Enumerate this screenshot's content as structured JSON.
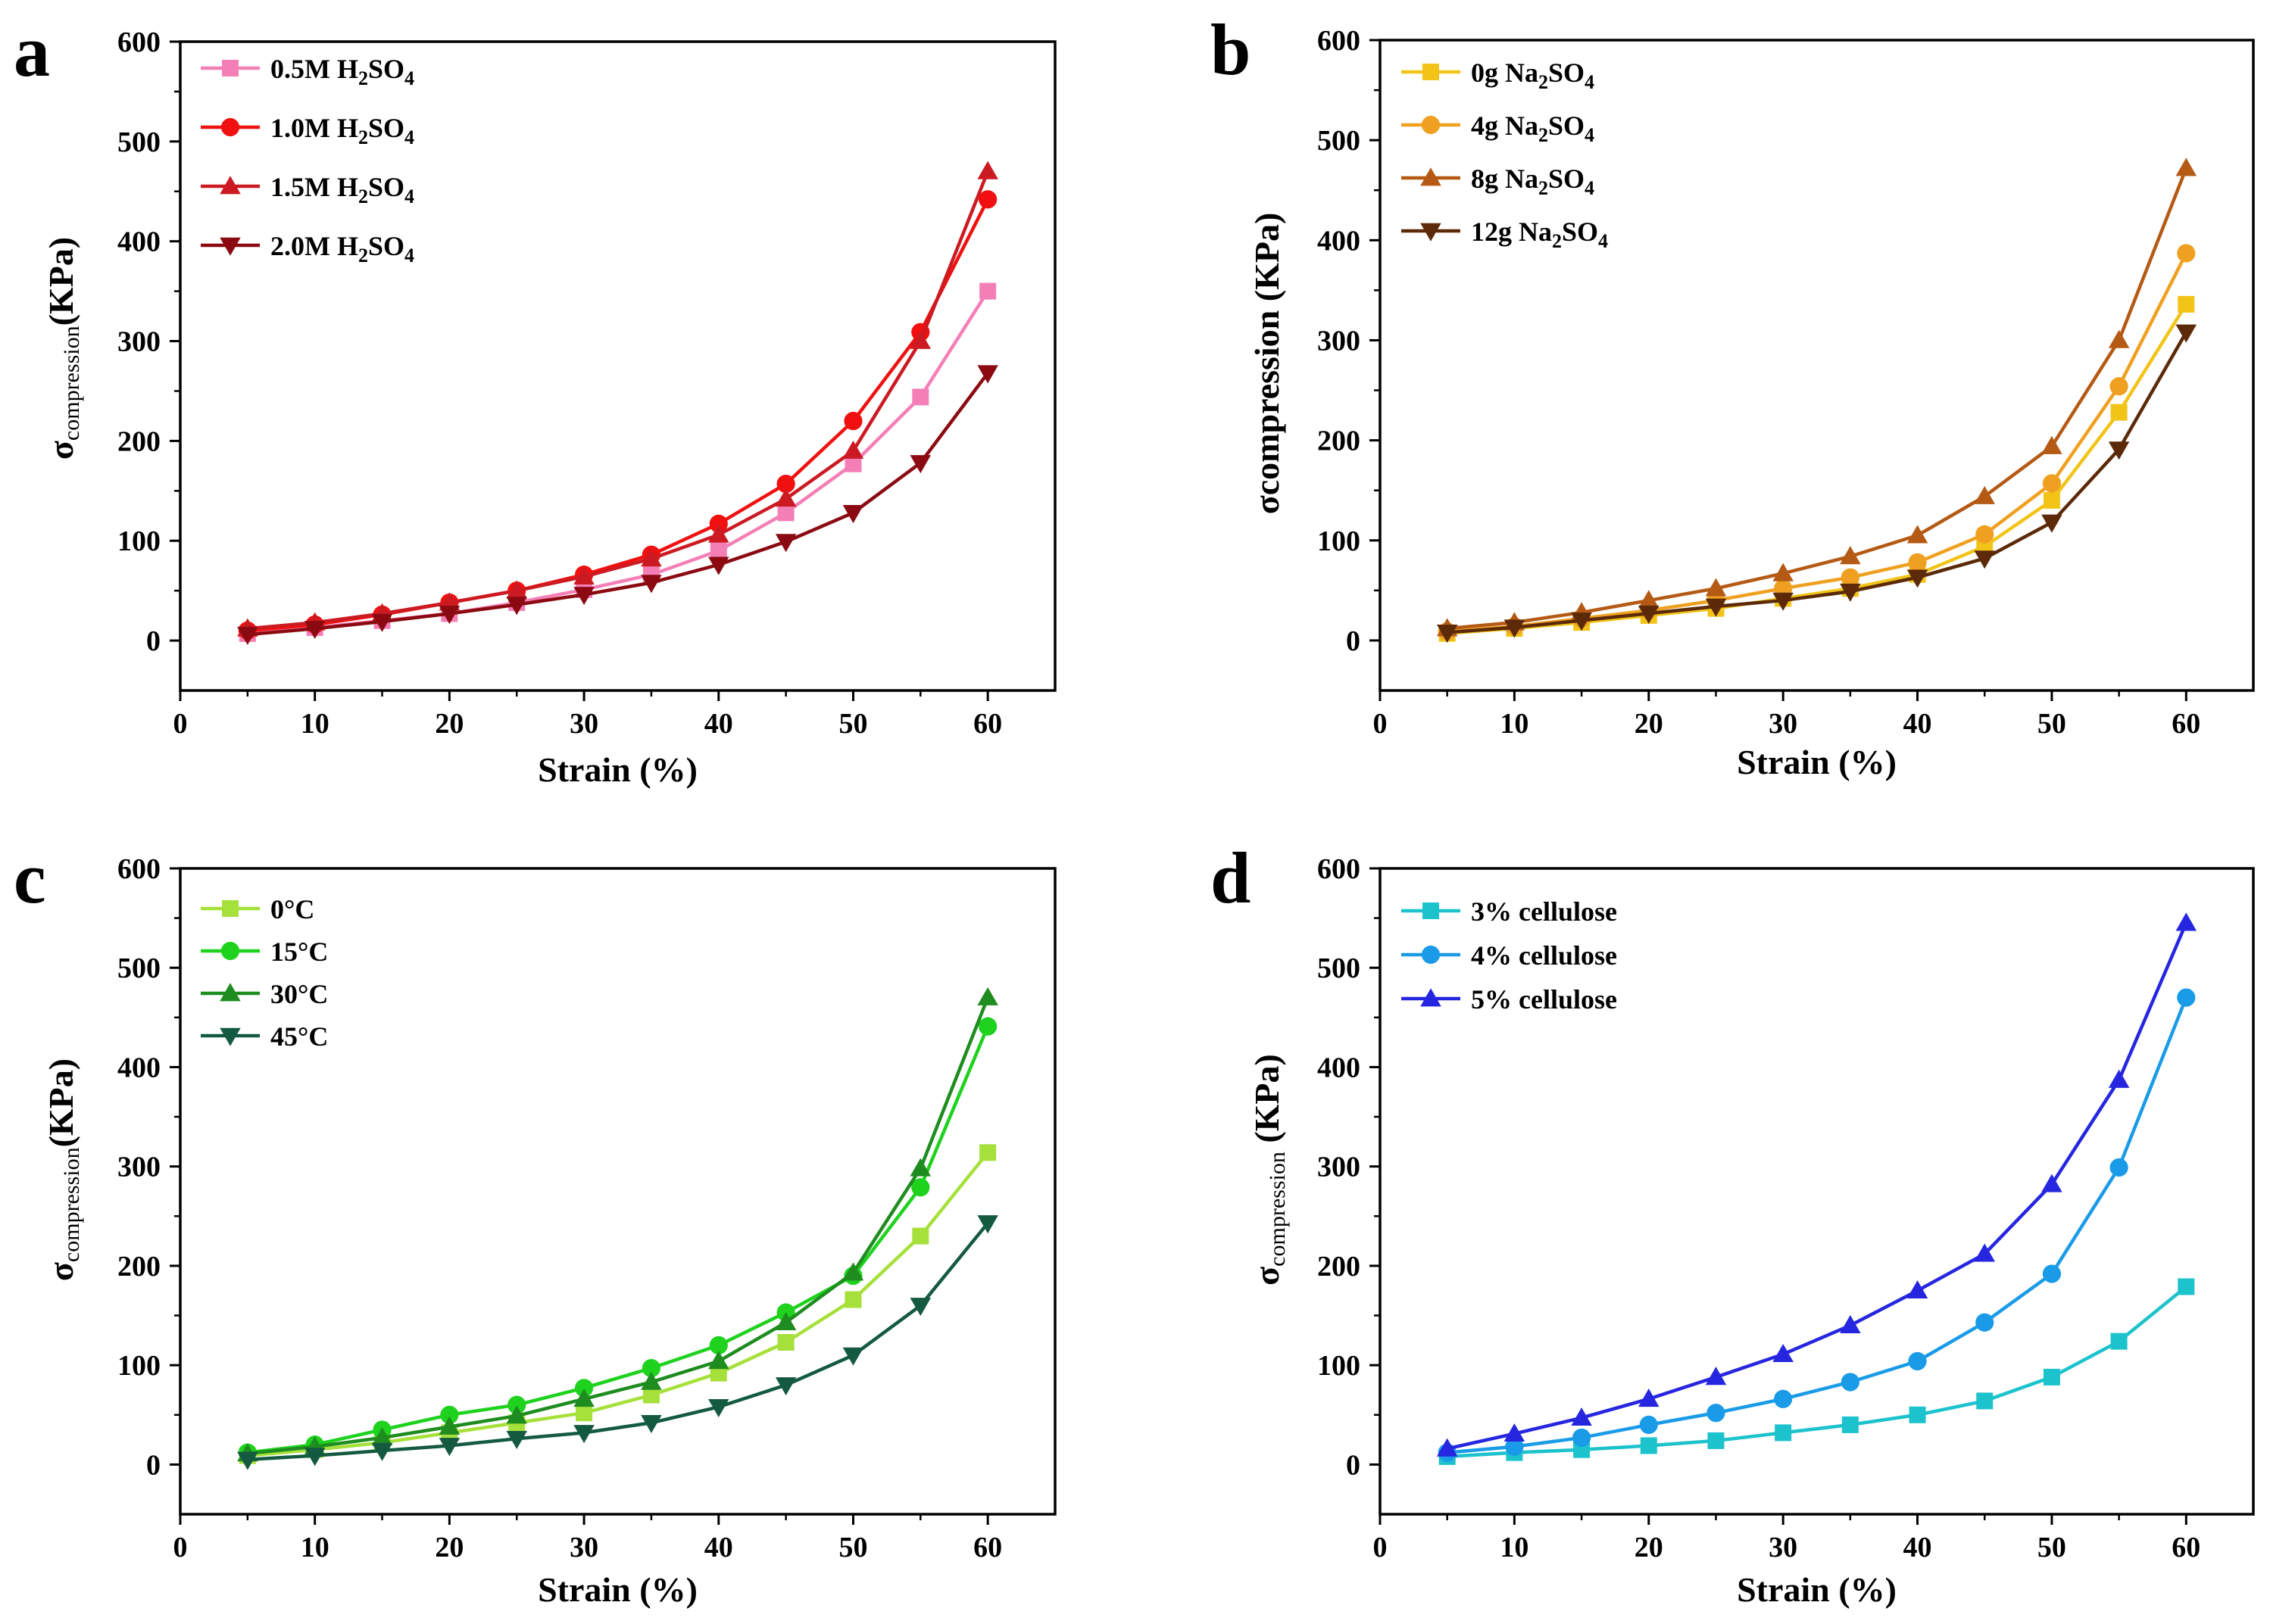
{
  "chart_data": [
    {
      "panel": "a",
      "type": "line",
      "xlabel": "Strain (%)",
      "ylabel_main": "σ",
      "ylabel_sub": "compression",
      "ylabel_unit": "(KPa)",
      "xlim": [
        0,
        65
      ],
      "ylim": [
        -50,
        600
      ],
      "xticks": [
        0,
        10,
        20,
        30,
        40,
        50,
        60
      ],
      "yticks": [
        0,
        100,
        200,
        300,
        400,
        500,
        600
      ],
      "x": [
        5,
        10,
        15,
        20,
        25,
        30,
        35,
        40,
        45,
        50,
        55,
        60
      ],
      "series": [
        {
          "name": "0.5M H2SO4",
          "label_parts": [
            [
              "0.5M H",
              ""
            ],
            [
              "2",
              "sub"
            ],
            [
              "SO",
              ""
            ],
            [
              "4",
              "sub"
            ]
          ],
          "color": "#f47fb6",
          "marker": "square",
          "values": [
            7,
            13,
            20,
            27,
            38,
            51,
            66,
            90,
            128,
            177,
            244,
            350
          ]
        },
        {
          "name": "1.0M H2SO4",
          "label_parts": [
            [
              "1.0M H",
              ""
            ],
            [
              "2",
              "sub"
            ],
            [
              "SO",
              ""
            ],
            [
              "4",
              "sub"
            ]
          ],
          "color": "#f01010",
          "marker": "circle",
          "values": [
            10,
            16,
            26,
            38,
            50,
            66,
            86,
            117,
            157,
            220,
            309,
            442
          ]
        },
        {
          "name": "1.5M H2SO4",
          "label_parts": [
            [
              "1.5M H",
              ""
            ],
            [
              "2",
              "sub"
            ],
            [
              "SO",
              ""
            ],
            [
              "4",
              "sub"
            ]
          ],
          "color": "#cc1a22",
          "marker": "triangle-up",
          "values": [
            12,
            18,
            27,
            38,
            50,
            64,
            82,
            106,
            142,
            190,
            300,
            470
          ]
        },
        {
          "name": "2.0M H2SO4",
          "label_parts": [
            [
              "2.0M H",
              ""
            ],
            [
              "2",
              "sub"
            ],
            [
              "SO",
              ""
            ],
            [
              "4",
              "sub"
            ]
          ],
          "color": "#8b0a12",
          "marker": "triangle-down",
          "values": [
            6,
            12,
            19,
            27,
            36,
            46,
            58,
            76,
            99,
            128,
            178,
            268
          ]
        }
      ]
    },
    {
      "panel": "b",
      "type": "line",
      "xlabel": "Strain (%)",
      "ylabel_main": "σcompression",
      "ylabel_sub": "",
      "ylabel_unit": " (KPa)",
      "xlim": [
        0,
        65
      ],
      "ylim": [
        -50,
        600
      ],
      "xticks": [
        0,
        10,
        20,
        30,
        40,
        50,
        60
      ],
      "yticks": [
        0,
        100,
        200,
        300,
        400,
        500,
        600
      ],
      "x": [
        5,
        10,
        15,
        20,
        25,
        30,
        35,
        40,
        45,
        50,
        55,
        60
      ],
      "series": [
        {
          "name": "0g Na2SO4",
          "label_parts": [
            [
              "0g Na",
              ""
            ],
            [
              "2",
              "sub"
            ],
            [
              "SO",
              ""
            ],
            [
              "4",
              "sub"
            ]
          ],
          "color": "#f2c418",
          "marker": "square",
          "values": [
            7,
            12,
            18,
            25,
            32,
            42,
            52,
            66,
            94,
            140,
            228,
            336
          ]
        },
        {
          "name": "4g Na2SO4",
          "label_parts": [
            [
              "4g Na",
              ""
            ],
            [
              "2",
              "sub"
            ],
            [
              "SO",
              ""
            ],
            [
              "4",
              "sub"
            ]
          ],
          "color": "#f0a020",
          "marker": "circle",
          "values": [
            9,
            14,
            22,
            30,
            40,
            52,
            63,
            78,
            106,
            157,
            254,
            387
          ]
        },
        {
          "name": "8g Na2SO4",
          "label_parts": [
            [
              "8g Na",
              ""
            ],
            [
              "2",
              "sub"
            ],
            [
              "SO",
              ""
            ],
            [
              "4",
              "sub"
            ]
          ],
          "color": "#b55a15",
          "marker": "triangle-up",
          "values": [
            12,
            18,
            28,
            40,
            52,
            67,
            84,
            105,
            144,
            194,
            300,
            472
          ]
        },
        {
          "name": "12g Na2SO4",
          "label_parts": [
            [
              "12g Na",
              ""
            ],
            [
              "2",
              "sub"
            ],
            [
              "SO",
              ""
            ],
            [
              "4",
              "sub"
            ]
          ],
          "color": "#5c2a08",
          "marker": "triangle-down",
          "values": [
            8,
            13,
            20,
            27,
            34,
            40,
            49,
            63,
            82,
            118,
            191,
            308
          ]
        }
      ]
    },
    {
      "panel": "c",
      "type": "line",
      "xlabel": "Strain (%)",
      "ylabel_main": "σ",
      "ylabel_sub": "compression",
      "ylabel_unit": "(KPa)",
      "xlim": [
        0,
        65
      ],
      "ylim": [
        -50,
        600
      ],
      "xticks": [
        0,
        10,
        20,
        30,
        40,
        50,
        60
      ],
      "yticks": [
        0,
        100,
        200,
        300,
        400,
        500,
        600
      ],
      "x": [
        5,
        10,
        15,
        20,
        25,
        30,
        35,
        40,
        45,
        50,
        55,
        60
      ],
      "series": [
        {
          "name": "0°C",
          "label_parts": [
            [
              "0°C",
              ""
            ]
          ],
          "color": "#a6e03a",
          "marker": "square",
          "values": [
            9,
            15,
            22,
            32,
            42,
            52,
            70,
            92,
            123,
            166,
            230,
            314
          ]
        },
        {
          "name": "15°C",
          "label_parts": [
            [
              "15°C",
              ""
            ]
          ],
          "color": "#1ed21e",
          "marker": "circle",
          "values": [
            12,
            20,
            35,
            50,
            60,
            77,
            97,
            120,
            153,
            190,
            279,
            441
          ]
        },
        {
          "name": "30°C",
          "label_parts": [
            [
              "30°C",
              ""
            ]
          ],
          "color": "#1e8c1e",
          "marker": "triangle-up",
          "values": [
            11,
            18,
            27,
            38,
            49,
            66,
            83,
            104,
            143,
            193,
            298,
            470
          ]
        },
        {
          "name": "45°C",
          "label_parts": [
            [
              "45°C",
              ""
            ]
          ],
          "color": "#145a41",
          "marker": "triangle-down",
          "values": [
            5,
            9,
            14,
            19,
            26,
            32,
            42,
            58,
            80,
            110,
            160,
            243
          ]
        }
      ]
    },
    {
      "panel": "d",
      "type": "line",
      "xlabel": "Strain (%)",
      "ylabel_main": "σ",
      "ylabel_sub": "compression",
      "ylabel_unit": " (KPa)",
      "xlim": [
        0,
        65
      ],
      "ylim": [
        -50,
        600
      ],
      "xticks": [
        0,
        10,
        20,
        30,
        40,
        50,
        60
      ],
      "yticks": [
        0,
        100,
        200,
        300,
        400,
        500,
        600
      ],
      "x": [
        5,
        10,
        15,
        20,
        25,
        30,
        35,
        40,
        45,
        50,
        55,
        60
      ],
      "series": [
        {
          "name": "3% cellulose",
          "label_parts": [
            [
              "3% cellulose",
              ""
            ]
          ],
          "color": "#1cc2cc",
          "marker": "square",
          "values": [
            8,
            12,
            15,
            19,
            24,
            32,
            40,
            50,
            64,
            88,
            124,
            179
          ]
        },
        {
          "name": "4% cellulose",
          "label_parts": [
            [
              "4% cellulose",
              ""
            ]
          ],
          "color": "#1a9be8",
          "marker": "circle",
          "values": [
            12,
            18,
            27,
            40,
            52,
            66,
            83,
            104,
            143,
            192,
            299,
            470
          ]
        },
        {
          "name": "5% cellulose",
          "label_parts": [
            [
              "5% cellulose",
              ""
            ]
          ],
          "color": "#2626e0",
          "marker": "triangle-up",
          "values": [
            16,
            31,
            47,
            66,
            88,
            111,
            140,
            175,
            212,
            282,
            387,
            545
          ]
        }
      ]
    }
  ]
}
